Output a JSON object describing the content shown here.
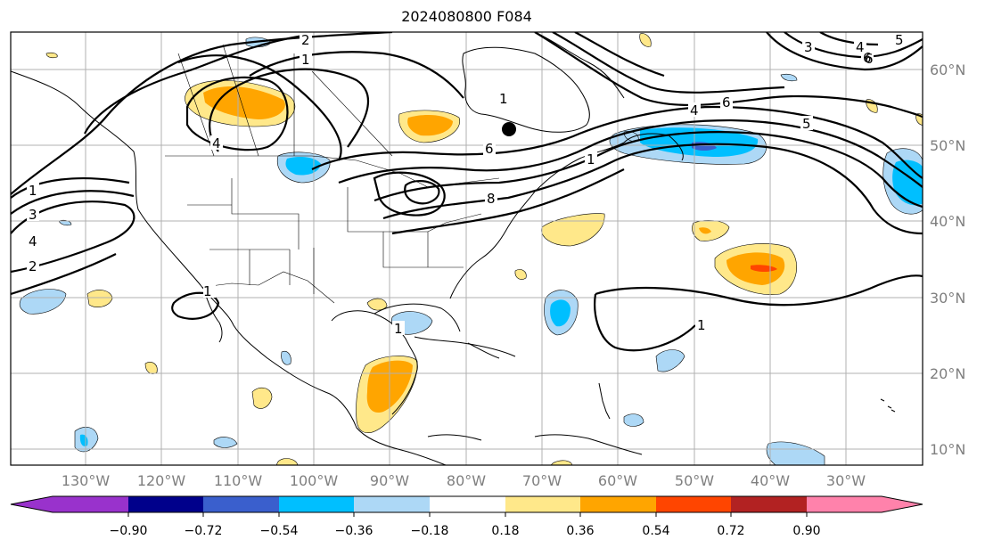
{
  "title": "2024080800 F084",
  "map": {
    "lon_labels": [
      "130°W",
      "120°W",
      "110°W",
      "100°W",
      "90°W",
      "80°W",
      "70°W",
      "60°W",
      "50°W",
      "40°W",
      "30°W"
    ],
    "lat_labels": [
      "60°N",
      "50°N",
      "40°N",
      "30°N",
      "20°N",
      "10°N"
    ],
    "contour_labels": [
      "2",
      "1",
      "1",
      "4",
      "6",
      "4",
      "6",
      "5",
      "6",
      "1",
      "3",
      "4",
      "2",
      "1",
      "3",
      "4",
      "5",
      "6",
      "1",
      "1",
      "1",
      "8"
    ],
    "marker": "black-dot",
    "grid": true
  },
  "colorbar": {
    "ticks": [
      "−0.90",
      "−0.72",
      "−0.54",
      "−0.36",
      "−0.18",
      "0.18",
      "0.36",
      "0.54",
      "0.72",
      "0.90"
    ],
    "colors": [
      "#9932cc",
      "#00008b",
      "#3a5fcd",
      "#00bfff",
      "#add8f6",
      "#ffffff",
      "#ffe88a",
      "#ffa500",
      "#ff4500",
      "#b22222",
      "#ff82ab"
    ]
  }
}
